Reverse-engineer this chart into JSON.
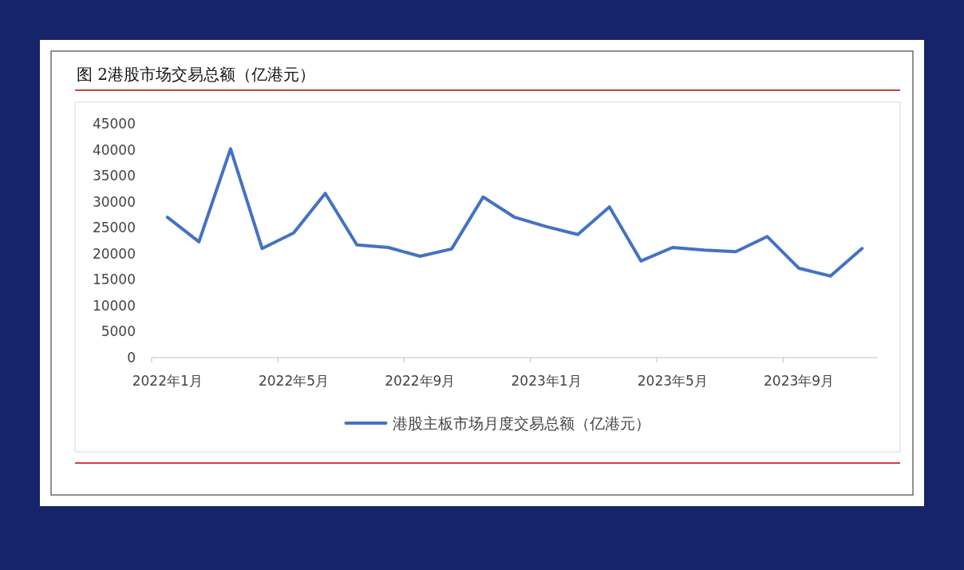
{
  "chart_data": {
    "type": "line",
    "title": "图 2港股市场交易总额（亿港元）",
    "categories": [
      "2022年1月",
      null,
      null,
      null,
      "2022年5月",
      null,
      null,
      null,
      "2022年9月",
      null,
      null,
      null,
      "2023年1月",
      null,
      null,
      null,
      "2023年5月",
      null,
      null,
      null,
      "2023年9月",
      null,
      null
    ],
    "series": [
      {
        "name": "港股主板市场月度交易总额（亿港元）",
        "color": "#4472c4",
        "values": [
          27000,
          22300,
          40200,
          21000,
          24000,
          31600,
          21700,
          21200,
          19500,
          20900,
          30900,
          27000,
          25200,
          23700,
          29000,
          18600,
          21200,
          20700,
          20400,
          23300,
          17200,
          15700,
          21000
        ]
      }
    ],
    "ylim": [
      0,
      45000
    ],
    "yticks": [
      0,
      5000,
      10000,
      15000,
      20000,
      25000,
      30000,
      35000,
      40000,
      45000
    ],
    "grid": false,
    "legend": "bottom"
  }
}
